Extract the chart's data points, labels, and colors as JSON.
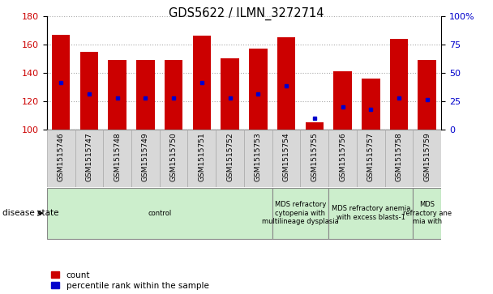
{
  "title": "GDS5622 / ILMN_3272714",
  "samples": [
    "GSM1515746",
    "GSM1515747",
    "GSM1515748",
    "GSM1515749",
    "GSM1515750",
    "GSM1515751",
    "GSM1515752",
    "GSM1515753",
    "GSM1515754",
    "GSM1515755",
    "GSM1515756",
    "GSM1515757",
    "GSM1515758",
    "GSM1515759"
  ],
  "counts": [
    167,
    155,
    149,
    149,
    149,
    166,
    150,
    157,
    165,
    105,
    141,
    136,
    164,
    149
  ],
  "percentile_vals": [
    133,
    125,
    122,
    122,
    122,
    133,
    122,
    125,
    131,
    108,
    116,
    114,
    122,
    121
  ],
  "ymin": 100,
  "ymax": 180,
  "y2min": 0,
  "y2max": 100,
  "yticks": [
    100,
    120,
    140,
    160,
    180
  ],
  "y2ticks": [
    0,
    25,
    50,
    75,
    100
  ],
  "bar_color": "#cc0000",
  "dot_color": "#0000cc",
  "groups": [
    {
      "label": "control",
      "start": 0,
      "end": 8
    },
    {
      "label": "MDS refractory\ncytopenia with\nmultilineage dysplasia",
      "start": 8,
      "end": 10
    },
    {
      "label": "MDS refractory anemia\nwith excess blasts-1",
      "start": 10,
      "end": 13
    },
    {
      "label": "MDS\nrefractory ane\nmia with",
      "start": 13,
      "end": 14
    }
  ],
  "group_color": "#cceecc",
  "xtick_bg": "#d8d8d8",
  "grid_color": "#aaaaaa",
  "disease_state_label": "disease state"
}
